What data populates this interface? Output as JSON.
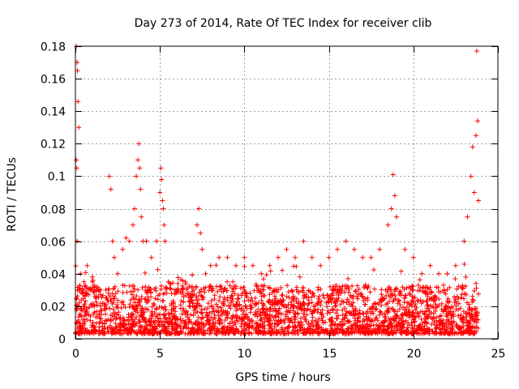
{
  "chart_data": {
    "type": "scatter",
    "title": "Day 273 of 2014, Rate Of TEC Index for receiver clib",
    "xlabel": "GPS time / hours",
    "ylabel": "ROTI / TECUs",
    "xlim": [
      0,
      25
    ],
    "ylim": [
      0,
      0.18
    ],
    "xticks": [
      0,
      5,
      10,
      15,
      20,
      25
    ],
    "yticks": [
      0,
      0.02,
      0.04,
      0.06,
      0.08,
      0.1,
      0.12,
      0.14,
      0.16,
      0.18
    ],
    "grid": true,
    "marker": "+",
    "series": [
      {
        "name": "ROTI",
        "color": "#ff0000",
        "x": [
          0.05,
          0.1,
          0.12,
          0.15,
          0.2,
          0.05,
          0.08,
          0.1,
          0.12,
          0.3,
          0.5,
          0.7,
          0.9,
          1.0,
          1.2,
          1.5,
          1.8,
          2.0,
          2.1,
          2.2,
          2.3,
          2.5,
          2.8,
          3.0,
          3.2,
          3.4,
          3.5,
          3.6,
          3.7,
          3.75,
          3.8,
          3.85,
          3.9,
          4.0,
          4.2,
          4.5,
          4.8,
          5.0,
          5.05,
          5.1,
          5.15,
          5.2,
          5.25,
          5.3,
          5.5,
          6.0,
          6.5,
          7.0,
          7.2,
          7.3,
          7.4,
          7.5,
          7.7,
          8.0,
          8.5,
          9.0,
          9.5,
          10.0,
          10.5,
          11.0,
          11.5,
          12.0,
          12.5,
          13.0,
          13.5,
          14.0,
          14.5,
          15.0,
          15.5,
          16.0,
          16.5,
          17.0,
          17.5,
          18.0,
          18.5,
          18.7,
          18.8,
          18.9,
          19.0,
          19.5,
          20.0,
          20.5,
          21.0,
          21.5,
          22.0,
          22.5,
          23.0,
          23.2,
          23.4,
          23.5,
          23.6,
          23.7,
          23.75,
          23.8,
          23.85
        ],
        "y": [
          0.18,
          0.17,
          0.165,
          0.146,
          0.13,
          0.11,
          0.105,
          0.06,
          0.03,
          0.04,
          0.035,
          0.045,
          0.03,
          0.035,
          0.025,
          0.02,
          0.03,
          0.1,
          0.092,
          0.06,
          0.05,
          0.04,
          0.055,
          0.062,
          0.06,
          0.07,
          0.08,
          0.1,
          0.11,
          0.12,
          0.105,
          0.092,
          0.075,
          0.06,
          0.06,
          0.05,
          0.06,
          0.09,
          0.105,
          0.098,
          0.085,
          0.08,
          0.07,
          0.06,
          0.035,
          0.03,
          0.035,
          0.03,
          0.07,
          0.08,
          0.065,
          0.055,
          0.04,
          0.045,
          0.05,
          0.05,
          0.045,
          0.05,
          0.045,
          0.04,
          0.045,
          0.05,
          0.055,
          0.05,
          0.06,
          0.05,
          0.045,
          0.05,
          0.055,
          0.06,
          0.055,
          0.05,
          0.05,
          0.055,
          0.07,
          0.08,
          0.101,
          0.088,
          0.075,
          0.055,
          0.05,
          0.04,
          0.045,
          0.04,
          0.04,
          0.045,
          0.06,
          0.075,
          0.1,
          0.118,
          0.09,
          0.125,
          0.177,
          0.134,
          0.085
        ]
      }
    ]
  }
}
